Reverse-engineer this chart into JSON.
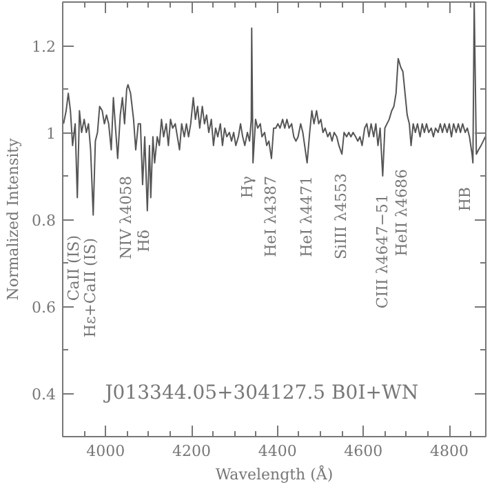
{
  "chart_data": {
    "type": "line",
    "title": "J013344.05+304127.5  B0I+WN",
    "xlabel": "Wavelength (Å)",
    "ylabel": "Normalized Intensity",
    "xlim": [
      3900,
      4885
    ],
    "ylim": [
      0.3,
      1.3
    ],
    "xticks": [
      4000,
      4200,
      4400,
      4600,
      4800
    ],
    "yticks": [
      0.4,
      0.6,
      0.8,
      1,
      1.2
    ],
    "grid": false,
    "marker": "none",
    "line_style": "solid",
    "series": [
      {
        "color": "#555555",
        "x": [
          3902,
          3908,
          3913,
          3918,
          3923,
          3929,
          3934,
          3939,
          3944,
          3950,
          3955,
          3960,
          3965,
          3971,
          3976,
          3981,
          3986,
          3992,
          3997,
          4002,
          4007,
          4013,
          4018,
          4023,
          4028,
          4034,
          4039,
          4044,
          4049,
          4052,
          4058,
          4065,
          4070,
          4076,
          4081,
          4086,
          4091,
          4097,
          4102,
          4105,
          4110,
          4114,
          4120,
          4125,
          4130,
          4135,
          4141,
          4146,
          4151,
          4156,
          4162,
          4167,
          4172,
          4177,
          4183,
          4188,
          4193,
          4198,
          4204,
          4209,
          4214,
          4219,
          4225,
          4230,
          4235,
          4240,
          4246,
          4251,
          4256,
          4261,
          4267,
          4272,
          4277,
          4282,
          4288,
          4293,
          4298,
          4303,
          4309,
          4314,
          4319,
          4324,
          4330,
          4335,
          4339,
          4340,
          4343,
          4349,
          4354,
          4360,
          4364,
          4370,
          4375,
          4380,
          4386,
          4391,
          4396,
          4401,
          4406,
          4412,
          4417,
          4422,
          4427,
          4433,
          4438,
          4443,
          4448,
          4454,
          4459,
          4469,
          4475,
          4480,
          4485,
          4491,
          4496,
          4501,
          4506,
          4511,
          4517,
          4522,
          4527,
          4532,
          4538,
          4543,
          4550,
          4555,
          4561,
          4566,
          4571,
          4576,
          4582,
          4587,
          4592,
          4597,
          4603,
          4608,
          4613,
          4618,
          4624,
          4629,
          4634,
          4639,
          4645,
          4650,
          4655,
          4660,
          4666,
          4671,
          4676,
          4681,
          4687,
          4692,
          4697,
          4702,
          4707,
          4711,
          4716,
          4721,
          4726,
          4732,
          4737,
          4742,
          4747,
          4752,
          4758,
          4763,
          4768,
          4774,
          4779,
          4784,
          4789,
          4795,
          4800,
          4805,
          4810,
          4816,
          4821,
          4826,
          4831,
          4837,
          4842,
          4847,
          4853,
          4855,
          4858,
          4863,
          4868,
          4874,
          4879,
          4884
        ],
        "values": [
          1.02,
          1.05,
          1.09,
          1.05,
          0.97,
          1.02,
          0.85,
          1.05,
          1.0,
          1.03,
          1.0,
          1.02,
          0.96,
          0.81,
          0.98,
          1.0,
          1.06,
          1.05,
          1.02,
          1.04,
          1.02,
          0.96,
          1.08,
          1.01,
          0.94,
          1.04,
          1.08,
          1.02,
          1.1,
          1.11,
          1.09,
          1.03,
          0.96,
          1.02,
          1.02,
          0.88,
          0.99,
          0.82,
          0.97,
          0.85,
          0.99,
          0.93,
          0.99,
          0.97,
          1.03,
          0.99,
          1.02,
          0.97,
          1.03,
          1.01,
          1.02,
          0.99,
          0.96,
          1.02,
          0.99,
          1.02,
          0.99,
          1.02,
          1.08,
          1.03,
          1.06,
          1.01,
          1.06,
          1.02,
          1.04,
          1.0,
          1.03,
          0.97,
          1.01,
          0.99,
          1.02,
          0.97,
          1.01,
          0.99,
          1.0,
          0.98,
          1.0,
          0.97,
          0.99,
          1.02,
          0.99,
          0.97,
          1.0,
          0.98,
          1.03,
          1.24,
          0.93,
          1.03,
          1.01,
          1.02,
          0.99,
          1.0,
          0.97,
          0.98,
          0.94,
          1.01,
          1.01,
          1.02,
          1.01,
          1.03,
          1.01,
          1.03,
          1.01,
          1.02,
          0.99,
          0.98,
          0.99,
          1.02,
          1.0,
          0.93,
          1.0,
          1.05,
          1.02,
          1.05,
          1.02,
          1.03,
          1.0,
          1.01,
          0.99,
          1.0,
          0.98,
          1.0,
          0.99,
          0.97,
          0.95,
          1.0,
          0.99,
          1.0,
          0.99,
          1.0,
          0.99,
          0.98,
          0.99,
          0.97,
          1.01,
          1.02,
          0.99,
          1.02,
          0.99,
          1.02,
          0.97,
          1.01,
          0.9,
          1.01,
          1.02,
          1.03,
          1.05,
          1.06,
          1.09,
          1.17,
          1.15,
          1.14,
          1.09,
          1.04,
          1.02,
          0.97,
          1.02,
          1.0,
          1.02,
          0.99,
          1.02,
          1.0,
          1.02,
          1.0,
          1.01,
          0.99,
          1.01,
          1.0,
          1.02,
          1.0,
          1.02,
          1.0,
          1.02,
          0.99,
          1.02,
          1.0,
          1.02,
          1.0,
          1.02,
          1.0,
          1.01,
          0.99,
          0.95,
          0.93,
          1.3,
          0.95,
          0.96,
          0.97,
          0.98,
          0.99
        ]
      }
    ],
    "annotations": [
      "CaII (IS)",
      "Hε+CaII (IS)",
      "NIV λ4058",
      "Hδ",
      "Hγ",
      "HeI λ4387",
      "HeI λ4471",
      "SiIII λ4553",
      "CIII λ4647−51",
      "HeII λ4686",
      "HB"
    ]
  }
}
